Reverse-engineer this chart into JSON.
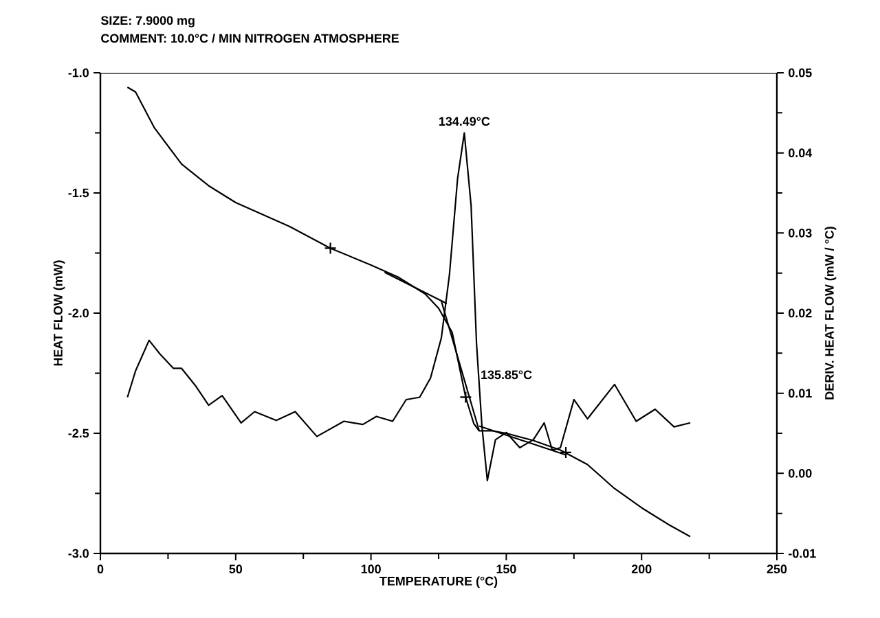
{
  "chart_data": {
    "type": "line",
    "title": "SIZE: 7.9000 mg",
    "subtitle": "COMMENT: 10.0°C / MIN NITROGEN ATMOSPHERE",
    "xlabel": "TEMPERATURE (°C)",
    "ylabel": "HEAT FLOW (mW)",
    "y2label": "DERIV. HEAT FLOW (mW / °C)",
    "xlim": [
      0,
      250
    ],
    "xticks": [
      0,
      50,
      100,
      150,
      200,
      250
    ],
    "ylim": [
      -3.0,
      -1.0
    ],
    "yticks": [
      {
        "value": -3.0,
        "label": "-3.0"
      },
      {
        "value": -2.5,
        "label": "-2.5"
      },
      {
        "value": -2.0,
        "label": "-2.0"
      },
      {
        "value": -1.5,
        "label": "-1.5"
      },
      {
        "value": -1.0,
        "label": "-1.0"
      }
    ],
    "y2lim": [
      -0.01,
      0.05
    ],
    "y2ticks": [
      -0.01,
      {
        "value": 0.0,
        "label": "0.00"
      },
      0.01,
      0.02,
      0.03,
      0.04,
      0.05
    ],
    "series": [
      {
        "color": "#000000",
        "x": [
          10,
          13,
          20,
          30,
          40,
          50,
          60,
          70,
          85,
          100,
          110,
          120,
          125,
          130,
          135,
          138,
          140,
          145,
          150,
          160,
          170,
          180,
          190,
          200,
          210,
          218
        ],
        "values": [
          -1.06,
          -1.08,
          -1.23,
          -1.38,
          -1.47,
          -1.54,
          -1.59,
          -1.64,
          -1.73,
          -1.8,
          -1.85,
          -1.92,
          -1.98,
          -2.08,
          -2.35,
          -2.46,
          -2.49,
          -2.49,
          -2.5,
          -2.53,
          -2.57,
          -2.63,
          -2.73,
          -2.81,
          -2.88,
          -2.93
        ]
      },
      {
        "color": "#000000",
        "axis": "y2",
        "x": [
          10,
          13,
          18,
          22,
          27,
          30,
          35,
          40,
          45,
          52,
          57,
          65,
          72,
          80,
          90,
          97,
          102,
          108,
          113,
          118,
          122,
          126,
          129,
          132,
          134.49,
          137,
          139,
          141,
          143,
          146,
          150,
          155,
          160,
          164,
          167,
          170,
          175,
          180,
          190,
          198,
          205,
          212,
          218
        ],
        "values": [
          0.0095,
          0.0128,
          0.0166,
          0.0149,
          0.0131,
          0.0131,
          0.011,
          0.0085,
          0.0097,
          0.0063,
          0.0077,
          0.0066,
          0.0077,
          0.0046,
          0.0065,
          0.0061,
          0.0071,
          0.0065,
          0.0092,
          0.0095,
          0.0119,
          0.0169,
          0.0248,
          0.0368,
          0.0425,
          0.0334,
          0.0162,
          0.0059,
          -0.0009,
          0.0042,
          0.0051,
          0.0032,
          0.0042,
          0.0063,
          0.0029,
          0.0032,
          0.0092,
          0.0068,
          0.0111,
          0.0065,
          0.008,
          0.0058,
          0.0063
        ]
      },
      {
        "color": "#000000",
        "x": [
          105,
          128
        ],
        "values": [
          -1.83,
          -1.96
        ]
      },
      {
        "color": "#000000",
        "x": [
          126,
          140
        ],
        "values": [
          -1.95,
          -2.49
        ]
      },
      {
        "color": "#000000",
        "x": [
          140,
          172
        ],
        "values": [
          -2.47,
          -2.59
        ]
      },
      {
        "color": "#000000",
        "type": "scatter",
        "marker": "cross",
        "x": [
          85,
          135,
          172
        ],
        "values": [
          -1.73,
          -2.35,
          -2.58
        ]
      }
    ],
    "annotations": [
      {
        "text": "134.49°C",
        "x": 134.49,
        "y": -1.25
      },
      {
        "text": "135.85°C",
        "x": 135.85,
        "y": -2.35
      }
    ]
  }
}
